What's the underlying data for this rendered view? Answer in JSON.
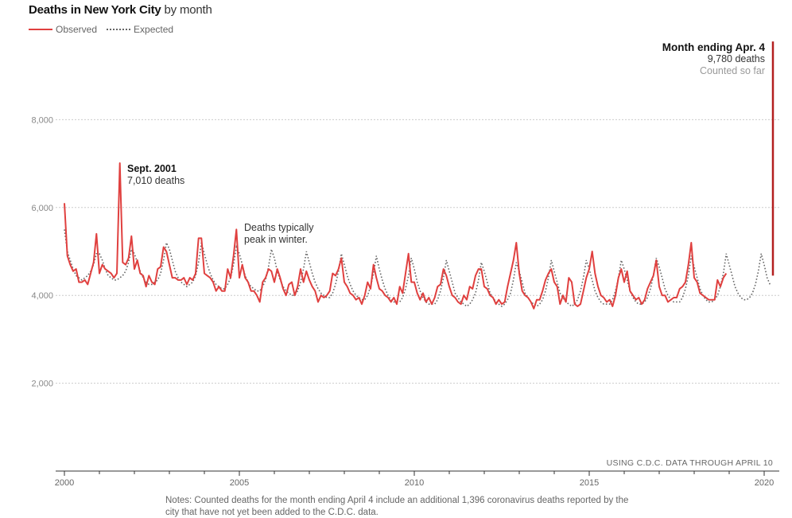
{
  "title": {
    "strong": "Deaths in New York City",
    "light": " by month"
  },
  "legend": {
    "observed": "Observed",
    "expected": "Expected"
  },
  "colors": {
    "observed": "#e0403f",
    "expected": "#666666",
    "spike": "#b31f1f"
  },
  "annotations": {
    "sept2001": {
      "title": "Sept. 2001",
      "value": "7,010 deaths"
    },
    "winter": {
      "line1": "Deaths typically",
      "line2": "peak in winter."
    },
    "april": {
      "title": "Month ending Apr. 4",
      "value": "9,780 deaths",
      "sub": "Counted so far"
    }
  },
  "source": "USING C.D.C. DATA THROUGH APRIL 10",
  "notes": "Notes: Counted deaths for the month ending April 4 include an additional 1,396 coronavirus deaths reported by the city that have not yet been added to the C.D.C. data.",
  "chart_data": {
    "type": "line",
    "title": "Deaths in New York City by month",
    "xlabel": "",
    "ylabel": "",
    "xlim": [
      2000,
      2020.4
    ],
    "ylim": [
      0,
      10000
    ],
    "grid": true,
    "legend_position": "top-left",
    "x_ticks": [
      2000,
      2005,
      2010,
      2015,
      2020
    ],
    "x_tick_labels": [
      "2000",
      "2005",
      "2010",
      "2015",
      "2020"
    ],
    "y_ticks": [
      2000,
      4000,
      6000,
      8000
    ],
    "y_tick_labels": [
      "2,000",
      "4,000",
      "6,000",
      "8,000"
    ],
    "series": [
      {
        "name": "Observed",
        "start": 2000,
        "values": [
          6100,
          4900,
          4700,
          4550,
          4600,
          4300,
          4300,
          4350,
          4250,
          4500,
          4750,
          5400,
          4500,
          4700,
          4600,
          4550,
          4500,
          4400,
          4500,
          7010,
          4750,
          4700,
          4850,
          5350,
          4600,
          4800,
          4500,
          4450,
          4200,
          4450,
          4300,
          4250,
          4600,
          4650,
          5100,
          5000,
          4700,
          4400,
          4400,
          4350,
          4350,
          4400,
          4250,
          4400,
          4350,
          4500,
          5300,
          5300,
          4500,
          4450,
          4400,
          4300,
          4100,
          4200,
          4100,
          4100,
          4600,
          4400,
          4900,
          5500,
          4400,
          4700,
          4400,
          4300,
          4100,
          4100,
          4000,
          3850,
          4300,
          4400,
          4600,
          4550,
          4300,
          4600,
          4400,
          4150,
          4000,
          4250,
          4300,
          4000,
          4200,
          4600,
          4300,
          4550,
          4350,
          4200,
          4100,
          3850,
          4000,
          3950,
          4000,
          4100,
          4500,
          4450,
          4600,
          4850,
          4300,
          4200,
          4050,
          4000,
          3900,
          3950,
          3800,
          4000,
          4300,
          4150,
          4700,
          4400,
          4150,
          4100,
          4000,
          3950,
          3850,
          3950,
          3800,
          4200,
          4050,
          4500,
          4950,
          4300,
          4300,
          4050,
          3900,
          4050,
          3850,
          3950,
          3800,
          3950,
          4200,
          4250,
          4600,
          4450,
          4200,
          4000,
          3950,
          3850,
          3800,
          4000,
          3900,
          4200,
          4150,
          4450,
          4600,
          4600,
          4200,
          4150,
          4000,
          3950,
          3800,
          3900,
          3800,
          3850,
          4200,
          4500,
          4800,
          5200,
          4500,
          4100,
          4000,
          3950,
          3850,
          3700,
          3900,
          3900,
          4100,
          4350,
          4500,
          4600,
          4300,
          4200,
          3800,
          4000,
          3850,
          4400,
          4300,
          3800,
          3750,
          3800,
          4100,
          4400,
          4600,
          5000,
          4500,
          4200,
          4000,
          3950,
          3850,
          3900,
          3750,
          4000,
          4400,
          4600,
          4300,
          4550,
          4100,
          4000,
          3900,
          3950,
          3800,
          3900,
          4150,
          4300,
          4450,
          4800,
          4200,
          4000,
          4000,
          3850,
          3900,
          3950,
          3950,
          4150,
          4200,
          4300,
          4700,
          5200,
          4400,
          4300,
          4050,
          4000,
          3950,
          3900,
          3900,
          3900,
          4350,
          4200,
          4400,
          4500
        ],
        "final_point": {
          "x": 2020.25,
          "value": 9780,
          "label": "Month ending Apr. 4"
        }
      },
      {
        "name": "Expected",
        "start": 2000,
        "values": [
          5500,
          5000,
          4800,
          4600,
          4450,
          4400,
          4350,
          4400,
          4450,
          4550,
          4700,
          4950,
          4950,
          4800,
          4600,
          4450,
          4400,
          4350,
          4350,
          4400,
          4450,
          4550,
          4750,
          5050,
          4950,
          4750,
          4550,
          4400,
          4300,
          4250,
          4250,
          4300,
          4350,
          4500,
          4800,
          5200,
          5050,
          4800,
          4550,
          4400,
          4300,
          4250,
          4200,
          4250,
          4300,
          4450,
          4750,
          5200,
          4950,
          4700,
          4500,
          4350,
          4250,
          4200,
          4150,
          4150,
          4250,
          4400,
          4700,
          5100,
          4950,
          4700,
          4450,
          4300,
          4200,
          4150,
          4100,
          4100,
          4200,
          4350,
          4650,
          5050,
          4850,
          4550,
          4350,
          4200,
          4100,
          4050,
          4000,
          4000,
          4100,
          4300,
          4600,
          5000,
          4750,
          4500,
          4300,
          4150,
          4050,
          4000,
          3950,
          3950,
          4050,
          4250,
          4550,
          4950,
          4700,
          4450,
          4250,
          4100,
          4000,
          3950,
          3900,
          3900,
          4000,
          4200,
          4500,
          4900,
          4600,
          4350,
          4150,
          4000,
          3900,
          3850,
          3850,
          3850,
          3950,
          4150,
          4450,
          4850,
          4600,
          4300,
          4100,
          3950,
          3850,
          3800,
          3800,
          3800,
          3900,
          4100,
          4400,
          4800,
          4550,
          4300,
          4050,
          3950,
          3850,
          3800,
          3750,
          3800,
          3900,
          4050,
          4350,
          4750,
          4550,
          4300,
          4050,
          3950,
          3850,
          3800,
          3750,
          3800,
          3900,
          4050,
          4350,
          4750,
          4550,
          4300,
          4050,
          3950,
          3850,
          3800,
          3750,
          3800,
          3900,
          4100,
          4400,
          4800,
          4550,
          4300,
          4050,
          3950,
          3850,
          3800,
          3750,
          3800,
          3900,
          4100,
          4400,
          4800,
          4600,
          4350,
          4100,
          3950,
          3850,
          3800,
          3800,
          3800,
          3900,
          4100,
          4400,
          4800,
          4600,
          4350,
          4100,
          3950,
          3850,
          3800,
          3800,
          3850,
          3950,
          4150,
          4450,
          4850,
          4650,
          4400,
          4150,
          4000,
          3900,
          3850,
          3850,
          3850,
          3950,
          4150,
          4450,
          4900,
          4650,
          4400,
          4150,
          4000,
          3900,
          3850,
          3850,
          3900,
          4000,
          4200,
          4500,
          4950,
          4700,
          4450,
          4200,
          4050,
          3950,
          3900,
          3900,
          3950,
          4050,
          4250,
          4550,
          4950,
          4700,
          4400,
          4250
        ]
      }
    ]
  }
}
